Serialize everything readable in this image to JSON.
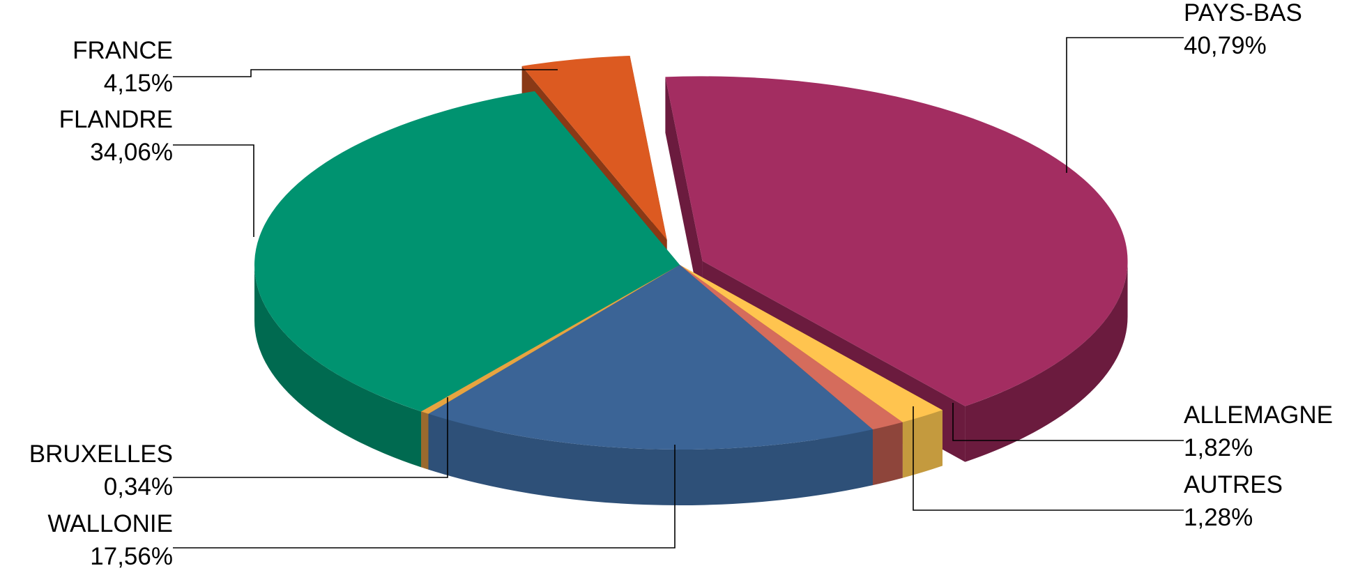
{
  "chart_data": {
    "type": "pie",
    "style": "3d-exploded",
    "labels": [
      "PAYS-BAS",
      "ALLEMAGNE",
      "AUTRES",
      "WALLONIE",
      "BRUXELLES",
      "FLANDRE",
      "FRANCE"
    ],
    "values": [
      40.79,
      1.82,
      1.28,
      17.56,
      0.34,
      34.06,
      4.15
    ],
    "value_labels": [
      "40,79%",
      "1,82%",
      "1,28%",
      "17,56%",
      "0,34%",
      "34,06%",
      "4,15%"
    ],
    "colors": [
      "#A32D61",
      "#FFC44F",
      "#D56C5C",
      "#3B6496",
      "#E7A440",
      "#009370",
      "#DC5A21"
    ],
    "side_colors": [
      "#6B1B3E",
      "#C49A3E",
      "#8E453B",
      "#2E5078",
      "#9A6A2E",
      "#006A50",
      "#8A3916"
    ],
    "legend": "none"
  }
}
